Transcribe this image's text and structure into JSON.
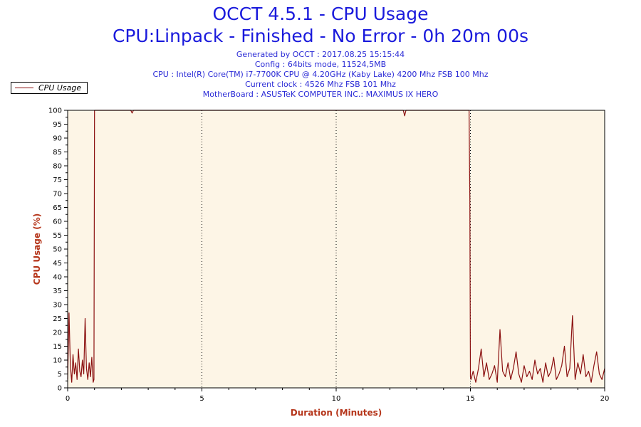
{
  "header": {
    "title": "OCCT 4.5.1 - CPU Usage",
    "subtitle": "CPU:Linpack - Finished - No Error - 0h 20m 00s",
    "info": [
      "Generated by OCCT : 2017.08.25 15:15:44",
      "Config : 64bits mode, 11524,5MB",
      "CPU : Intel(R) Core(TM) i7-7700K CPU @ 4.20GHz (Kaby Lake) 4200 Mhz FSB 100 Mhz",
      "Current clock : 4526 Mhz FSB 101 Mhz",
      "MotherBoard : ASUSTeK COMPUTER INC.: MAXIMUS IX HERO"
    ]
  },
  "legend": {
    "label": "CPU Usage"
  },
  "colors": {
    "line": "#8b1010",
    "plot_bg": "#fdf5e6",
    "title": "#1a1adc",
    "axis_title": "#b5351a"
  },
  "chart_data": {
    "type": "line",
    "title": "OCCT 4.5.1 - CPU Usage",
    "xlabel": "Duration (Minutes)",
    "ylabel": "CPU Usage (%)",
    "xlim": [
      0,
      20
    ],
    "ylim": [
      0,
      100
    ],
    "x_ticks": [
      0,
      5,
      10,
      15,
      20
    ],
    "y_ticks": [
      0,
      5,
      10,
      15,
      20,
      25,
      30,
      35,
      40,
      45,
      50,
      55,
      60,
      65,
      70,
      75,
      80,
      85,
      90,
      95,
      100
    ],
    "grid": "vertical dotted at 5, 10, 15",
    "legend_position": "top-left",
    "series": [
      {
        "name": "CPU Usage",
        "x": [
          0,
          0.05,
          0.1,
          0.15,
          0.2,
          0.25,
          0.3,
          0.35,
          0.4,
          0.45,
          0.5,
          0.55,
          0.6,
          0.65,
          0.7,
          0.75,
          0.8,
          0.85,
          0.9,
          0.95,
          0.98,
          1.0,
          1.02,
          1.5,
          2.0,
          2.35,
          2.4,
          2.45,
          3.0,
          4.0,
          5.0,
          6.0,
          7.0,
          8.0,
          9.0,
          10.0,
          11.0,
          12.0,
          12.5,
          12.55,
          12.6,
          13.0,
          14.0,
          14.95,
          14.98,
          15.0,
          15.02,
          15.1,
          15.2,
          15.3,
          15.4,
          15.5,
          15.6,
          15.7,
          15.8,
          15.9,
          16.0,
          16.1,
          16.2,
          16.3,
          16.4,
          16.5,
          16.6,
          16.7,
          16.8,
          16.9,
          17.0,
          17.1,
          17.2,
          17.3,
          17.4,
          17.5,
          17.6,
          17.7,
          17.8,
          17.9,
          18.0,
          18.1,
          18.2,
          18.3,
          18.4,
          18.5,
          18.6,
          18.7,
          18.8,
          18.9,
          19.0,
          19.1,
          19.2,
          19.3,
          19.4,
          19.5,
          19.6,
          19.7,
          19.8,
          19.9,
          20.0
        ],
        "values": [
          3,
          27,
          8,
          2,
          12,
          5,
          9,
          3,
          14,
          6,
          4,
          10,
          5,
          25,
          7,
          3,
          9,
          4,
          11,
          2,
          3,
          100,
          100,
          100,
          100,
          100,
          99,
          100,
          100,
          100,
          100,
          100,
          100,
          100,
          100,
          100,
          100,
          100,
          100,
          98,
          100,
          100,
          100,
          100,
          68,
          4,
          3,
          6,
          2,
          7,
          14,
          4,
          9,
          3,
          5,
          8,
          2,
          21,
          6,
          4,
          9,
          3,
          7,
          13,
          5,
          2,
          8,
          4,
          6,
          3,
          10,
          5,
          7,
          2,
          9,
          4,
          6,
          11,
          3,
          5,
          8,
          15,
          4,
          7,
          26,
          3,
          9,
          5,
          12,
          4,
          6,
          2,
          8,
          13,
          5,
          3,
          7
        ]
      }
    ]
  },
  "axes": {
    "x_tick_labels": [
      "0",
      "5",
      "10",
      "15",
      "20"
    ],
    "y_tick_labels": [
      "0",
      "5",
      "10",
      "15",
      "20",
      "25",
      "30",
      "35",
      "40",
      "45",
      "50",
      "55",
      "60",
      "65",
      "70",
      "75",
      "80",
      "85",
      "90",
      "95",
      "100"
    ]
  }
}
